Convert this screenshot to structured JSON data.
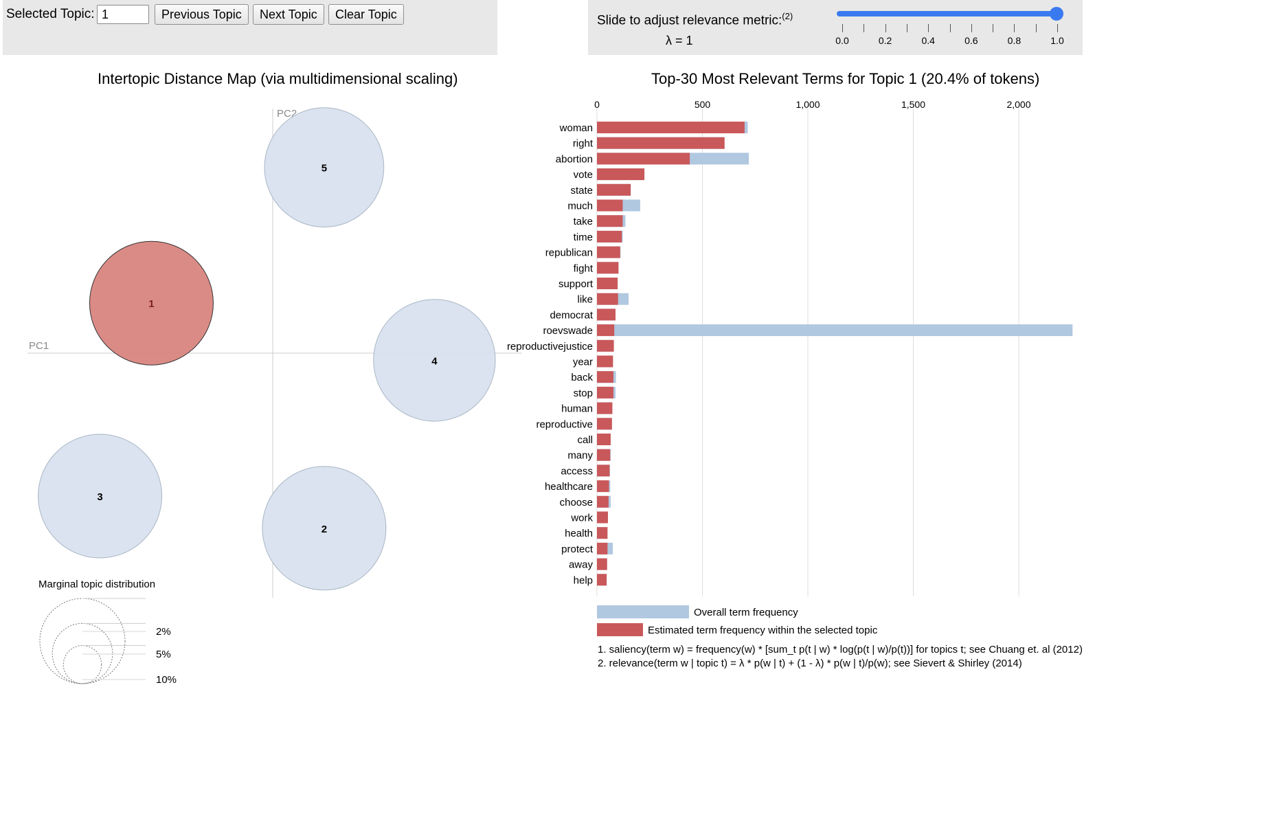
{
  "controls": {
    "selected_topic_label": "Selected Topic:",
    "selected_topic_value": "1",
    "previous_label": "Previous Topic",
    "next_label": "Next Topic",
    "clear_label": "Clear Topic"
  },
  "slider": {
    "label": "Slide to adjust relevance metric:",
    "footnote_marker": "(2)",
    "lambda_text": "λ = 1",
    "value": 1.0,
    "ticks": [
      "0.0",
      "0.2",
      "0.4",
      "0.6",
      "0.8",
      "1.0"
    ]
  },
  "colors": {
    "selected_topic": "#d9857f",
    "selected_stroke": "#333333",
    "topic_fill": "#d8e2ee",
    "topic_stroke": "#a9b6c6",
    "overall_bar": "#b0c8e0",
    "topic_bar": "#c9585a",
    "slider": "#3a7af0",
    "grid": "#dddddd"
  },
  "chart_data": [
    {
      "type": "scatter",
      "title": "Intertopic Distance Map (via multidimensional scaling)",
      "xlabel": "PC1",
      "ylabel": "PC2",
      "grid": false,
      "selected_topic": 1,
      "points": [
        {
          "topic": "1",
          "x": -0.33,
          "y": 0.14,
          "size": 20.4
        },
        {
          "topic": "2",
          "x": 0.14,
          "y": -0.49,
          "size": 20.4
        },
        {
          "topic": "3",
          "x": -0.47,
          "y": -0.4,
          "size": 20.4
        },
        {
          "topic": "4",
          "x": 0.44,
          "y": -0.02,
          "size": 19.8
        },
        {
          "topic": "5",
          "x": 0.14,
          "y": 0.52,
          "size": 19.0
        }
      ],
      "size_legend": {
        "title": "Marginal topic distribution",
        "items": [
          {
            "label": "2%",
            "value": 2
          },
          {
            "label": "5%",
            "value": 5
          },
          {
            "label": "10%",
            "value": 10
          }
        ]
      }
    },
    {
      "type": "bar",
      "orientation": "horizontal",
      "title": "Top-30 Most Relevant Terms for Topic 1 (20.4% of tokens)",
      "xlim": [
        0,
        2250
      ],
      "grid": true,
      "xticks": [
        {
          "value": 0,
          "label": "0"
        },
        {
          "value": 500,
          "label": "500"
        },
        {
          "value": 1000,
          "label": "1,000"
        },
        {
          "value": 1500,
          "label": "1,500"
        },
        {
          "value": 2000,
          "label": "2,000"
        }
      ],
      "categories": [
        "woman",
        "right",
        "abortion",
        "vote",
        "state",
        "much",
        "take",
        "time",
        "republican",
        "fight",
        "support",
        "like",
        "democrat",
        "roevswade",
        "reproductivejustice",
        "year",
        "back",
        "stop",
        "human",
        "reproductive",
        "call",
        "many",
        "access",
        "healthcare",
        "choose",
        "work",
        "health",
        "protect",
        "away",
        "help"
      ],
      "series": [
        {
          "name": "Overall term frequency",
          "values": [
            715,
            605,
            720,
            225,
            160,
            205,
            135,
            122,
            112,
            102,
            98,
            150,
            88,
            2255,
            80,
            76,
            90,
            88,
            73,
            71,
            65,
            65,
            62,
            63,
            65,
            52,
            50,
            75,
            48,
            46
          ]
        },
        {
          "name": "Estimated term frequency within the selected topic",
          "values": [
            700,
            605,
            440,
            225,
            160,
            122,
            122,
            118,
            110,
            102,
            98,
            100,
            88,
            82,
            80,
            76,
            78,
            78,
            73,
            71,
            65,
            63,
            60,
            57,
            55,
            52,
            50,
            50,
            48,
            46
          ]
        }
      ],
      "footnotes": [
        "1. saliency(term w) = frequency(w) * [sum_t p(t | w) * log(p(t | w)/p(t))] for topics t; see Chuang et. al (2012)",
        "2. relevance(term w | topic t) = λ * p(w | t) + (1 - λ) * p(w | t)/p(w); see Sievert & Shirley (2014)"
      ]
    }
  ]
}
